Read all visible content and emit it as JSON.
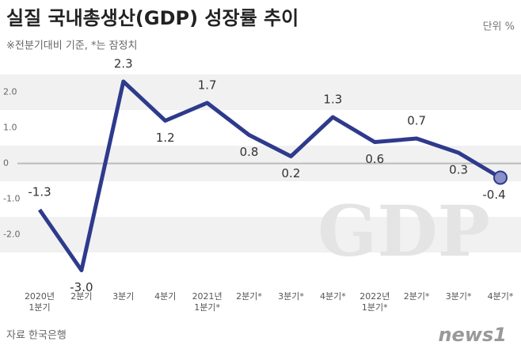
{
  "chart_data": {
    "type": "line",
    "title": "실질 국내총생산(GDP) 성장률 추이",
    "subtitle": "※전분기대비 기준, *는 잠정치",
    "unit": "단위 %",
    "source": "자료 한국은행",
    "watermark": "GDP",
    "logo": "news1",
    "categories": [
      "2020년\n1분기",
      "2분기",
      "3분기",
      "4분기",
      "2021년\n1분기*",
      "2분기*",
      "3분기*",
      "4분기*",
      "2022년\n1분기*",
      "2분기*",
      "3분기*",
      "4분기*"
    ],
    "values": [
      -1.3,
      -3.0,
      2.3,
      1.2,
      1.7,
      0.8,
      0.2,
      1.3,
      0.6,
      0.7,
      0.3,
      -0.4
    ],
    "value_labels": [
      "-1.3",
      "-3.0",
      "2.3",
      "1.2",
      "1.7",
      "0.8",
      "0.2",
      "1.3",
      "0.6",
      "0.7",
      "0.3",
      "-0.4"
    ],
    "color": "#2e3a8c",
    "ylim": [
      -3.3,
      2.7
    ],
    "yticks": [
      {
        "value": 2,
        "label": "2.0"
      },
      {
        "value": 1,
        "label": "1.0"
      },
      0,
      {
        "value": -1,
        "label": "-1.0"
      },
      {
        "value": -2,
        "label": "-2.0"
      }
    ],
    "grid": true
  }
}
